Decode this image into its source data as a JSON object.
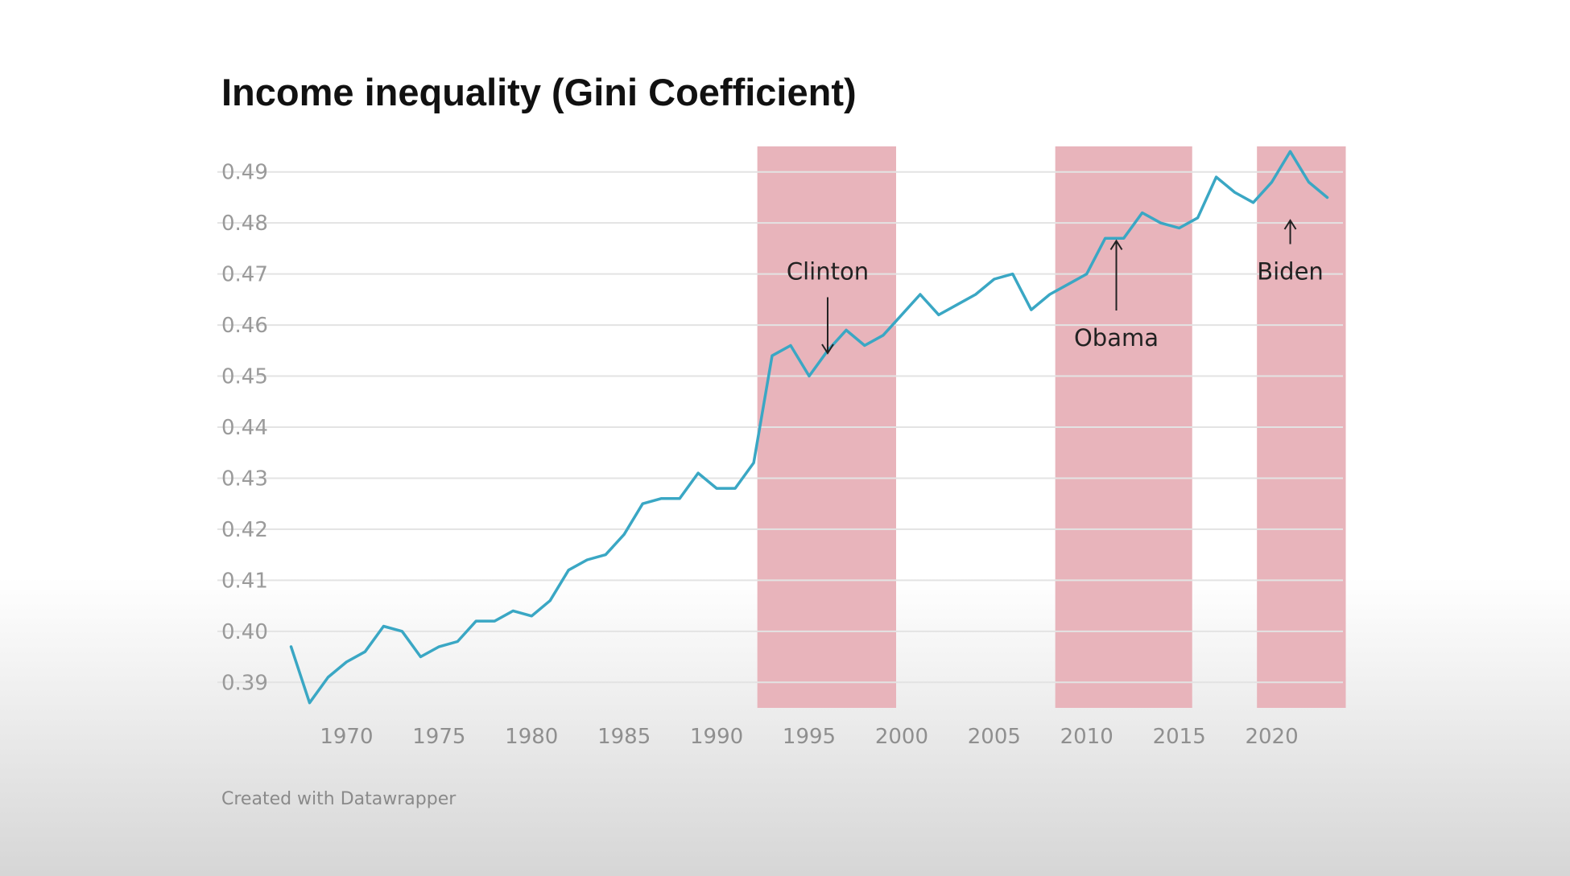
{
  "chart_data": {
    "type": "line",
    "title": "Income inequality (Gini Coefficient)",
    "subtitle": "",
    "xlabel": "",
    "ylabel": "",
    "xlim": [
      1966.5,
      2023.5
    ],
    "ylim": [
      0.385,
      0.495
    ],
    "grid": true,
    "legend": "none",
    "y_ticks": [
      "0.39",
      "0.40",
      "0.41",
      "0.42",
      "0.43",
      "0.44",
      "0.45",
      "0.46",
      "0.47",
      "0.48",
      "0.49"
    ],
    "x_ticks": [
      "1970",
      "1975",
      "1980",
      "1985",
      "1990",
      "1995",
      "2000",
      "2005",
      "2010",
      "2015",
      "2020"
    ],
    "line_color": "#3aa7c4",
    "band_color": "#e8b4bb",
    "shaded_periods": [
      {
        "start": 1992.2,
        "end": 1999.7
      },
      {
        "start": 2008.3,
        "end": 2015.7
      },
      {
        "start": 2019.2,
        "end": 2024.0
      }
    ],
    "annotations": [
      {
        "text": "Clinton",
        "x": 1996,
        "y": 0.4705,
        "arrow": "down",
        "arrow_to": 0.4545
      },
      {
        "text": "Obama",
        "x": 2011.6,
        "y": 0.4575,
        "arrow": "up",
        "arrow_to": 0.4765
      },
      {
        "text": "Biden",
        "x": 2021.0,
        "y": 0.4705,
        "arrow": "up",
        "arrow_to": 0.4805
      }
    ],
    "series": [
      {
        "values": [
          [
            1967,
            0.397
          ],
          [
            1968,
            0.386
          ],
          [
            1969,
            0.391
          ],
          [
            1970,
            0.394
          ],
          [
            1971,
            0.396
          ],
          [
            1972,
            0.401
          ],
          [
            1973,
            0.4
          ],
          [
            1974,
            0.395
          ],
          [
            1975,
            0.397
          ],
          [
            1976,
            0.398
          ],
          [
            1977,
            0.402
          ],
          [
            1978,
            0.402
          ],
          [
            1979,
            0.404
          ],
          [
            1980,
            0.403
          ],
          [
            1981,
            0.406
          ],
          [
            1982,
            0.412
          ],
          [
            1983,
            0.414
          ],
          [
            1984,
            0.415
          ],
          [
            1985,
            0.419
          ],
          [
            1986,
            0.425
          ],
          [
            1987,
            0.426
          ],
          [
            1988,
            0.426
          ],
          [
            1989,
            0.431
          ],
          [
            1990,
            0.428
          ],
          [
            1991,
            0.428
          ],
          [
            1992,
            0.433
          ],
          [
            1993,
            0.454
          ],
          [
            1994,
            0.456
          ],
          [
            1995,
            0.45
          ],
          [
            1996,
            0.455
          ],
          [
            1997,
            0.459
          ],
          [
            1998,
            0.456
          ],
          [
            1999,
            0.458
          ],
          [
            2000,
            0.462
          ],
          [
            2001,
            0.466
          ],
          [
            2002,
            0.462
          ],
          [
            2003,
            0.464
          ],
          [
            2004,
            0.466
          ],
          [
            2005,
            0.469
          ],
          [
            2006,
            0.47
          ],
          [
            2007,
            0.463
          ],
          [
            2008,
            0.466
          ],
          [
            2009,
            0.468
          ],
          [
            2010,
            0.47
          ],
          [
            2011,
            0.477
          ],
          [
            2012,
            0.477
          ],
          [
            2013,
            0.482
          ],
          [
            2014,
            0.48
          ],
          [
            2015,
            0.479
          ],
          [
            2016,
            0.481
          ],
          [
            2017,
            0.489
          ],
          [
            2018,
            0.486
          ],
          [
            2019,
            0.484
          ],
          [
            2020,
            0.488
          ],
          [
            2021,
            0.494
          ],
          [
            2022,
            0.488
          ],
          [
            2023,
            0.485
          ]
        ]
      }
    ]
  },
  "footer": {
    "credit": "Created with Datawrapper"
  }
}
